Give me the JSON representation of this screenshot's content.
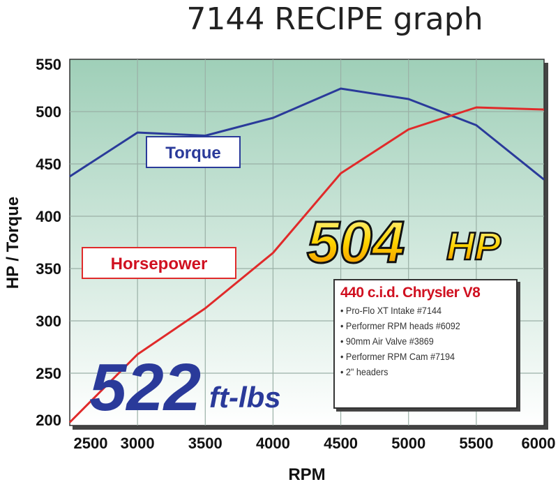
{
  "chart_data": {
    "type": "line",
    "title": "7144 RECIPE graph",
    "xlabel": "RPM",
    "ylabel": "HP / Torque",
    "x": [
      2500,
      3000,
      3500,
      4000,
      4500,
      5000,
      5500,
      6000
    ],
    "xlim": [
      2500,
      6000
    ],
    "ylim": [
      200,
      550
    ],
    "xticks": [
      "2500",
      "3000",
      "3500",
      "4000",
      "4500",
      "5000",
      "5500",
      "6000"
    ],
    "yticks": [
      "200",
      "250",
      "300",
      "350",
      "400",
      "450",
      "500",
      "550"
    ],
    "grid": true,
    "series": [
      {
        "name": "Torque",
        "color": "#2a3a9a",
        "values": [
          438,
          480,
          477,
          494,
          522,
          512,
          487,
          435
        ]
      },
      {
        "name": "Horsepower",
        "color": "#e02a2a",
        "values": [
          203,
          268,
          312,
          365,
          441,
          483,
          504,
          502
        ]
      }
    ],
    "annotations": {
      "peak_hp_number": "504",
      "peak_hp_unit": "HP",
      "peak_torque_number": "522",
      "peak_torque_unit": "ft-lbs"
    },
    "spec_box": {
      "heading": "440 c.i.d. Chrysler V8",
      "items": [
        "Pro-Flo XT Intake #7144",
        "Performer RPM heads #6092",
        "90mm Air Valve #3869",
        "Performer RPM Cam #7194",
        "2\" headers"
      ]
    },
    "background_gradient": [
      "#9fcfb8",
      "#ffffff"
    ]
  }
}
